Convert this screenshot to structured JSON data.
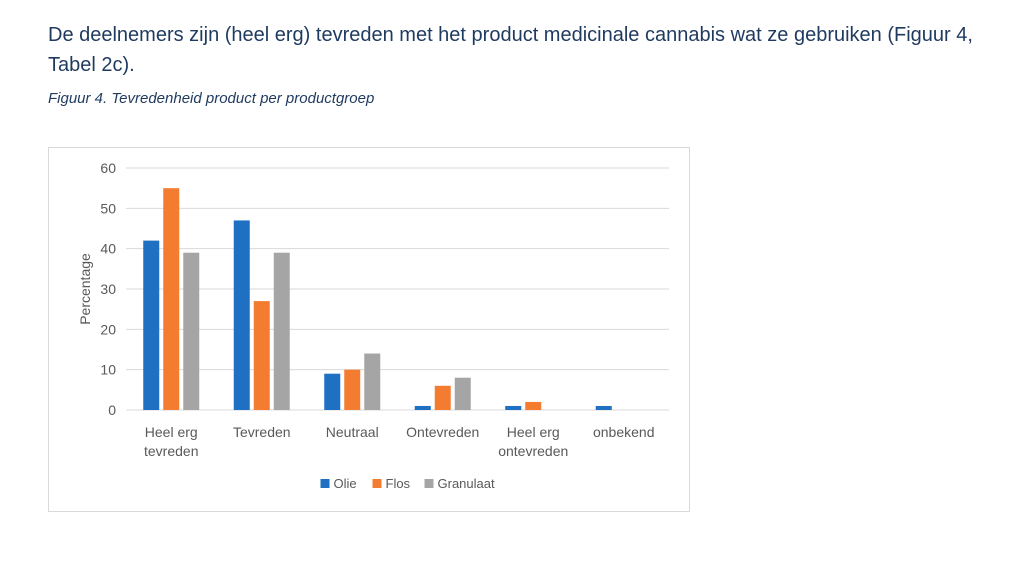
{
  "intro_text": "De deelnemers zijn (heel erg) tevreden met het product medicinale cannabis wat ze gebruiken (Figuur 4, Tabel 2c).",
  "figure_caption": "Figuur 4. Tevredenheid product per productgroep",
  "chart_data": {
    "type": "bar",
    "title": "",
    "xlabel": "",
    "ylabel": "Percentage",
    "ylim": [
      0,
      60
    ],
    "yticks": [
      0,
      10,
      20,
      30,
      40,
      50,
      60
    ],
    "grid": true,
    "legend_position": "bottom",
    "categories": [
      [
        "Heel erg",
        "tevreden"
      ],
      [
        "Tevreden"
      ],
      [
        "Neutraal"
      ],
      [
        "Ontevreden"
      ],
      [
        "Heel erg",
        "ontevreden"
      ],
      [
        "onbekend"
      ]
    ],
    "series": [
      {
        "name": "Olie",
        "color": "#1f6fc2",
        "values": [
          42,
          47,
          9,
          1,
          1,
          1
        ]
      },
      {
        "name": "Flos",
        "color": "#f47c30",
        "values": [
          55,
          27,
          10,
          6,
          2,
          0
        ]
      },
      {
        "name": "Granulaat",
        "color": "#a5a5a5",
        "values": [
          39,
          39,
          14,
          8,
          0,
          0
        ]
      }
    ]
  }
}
